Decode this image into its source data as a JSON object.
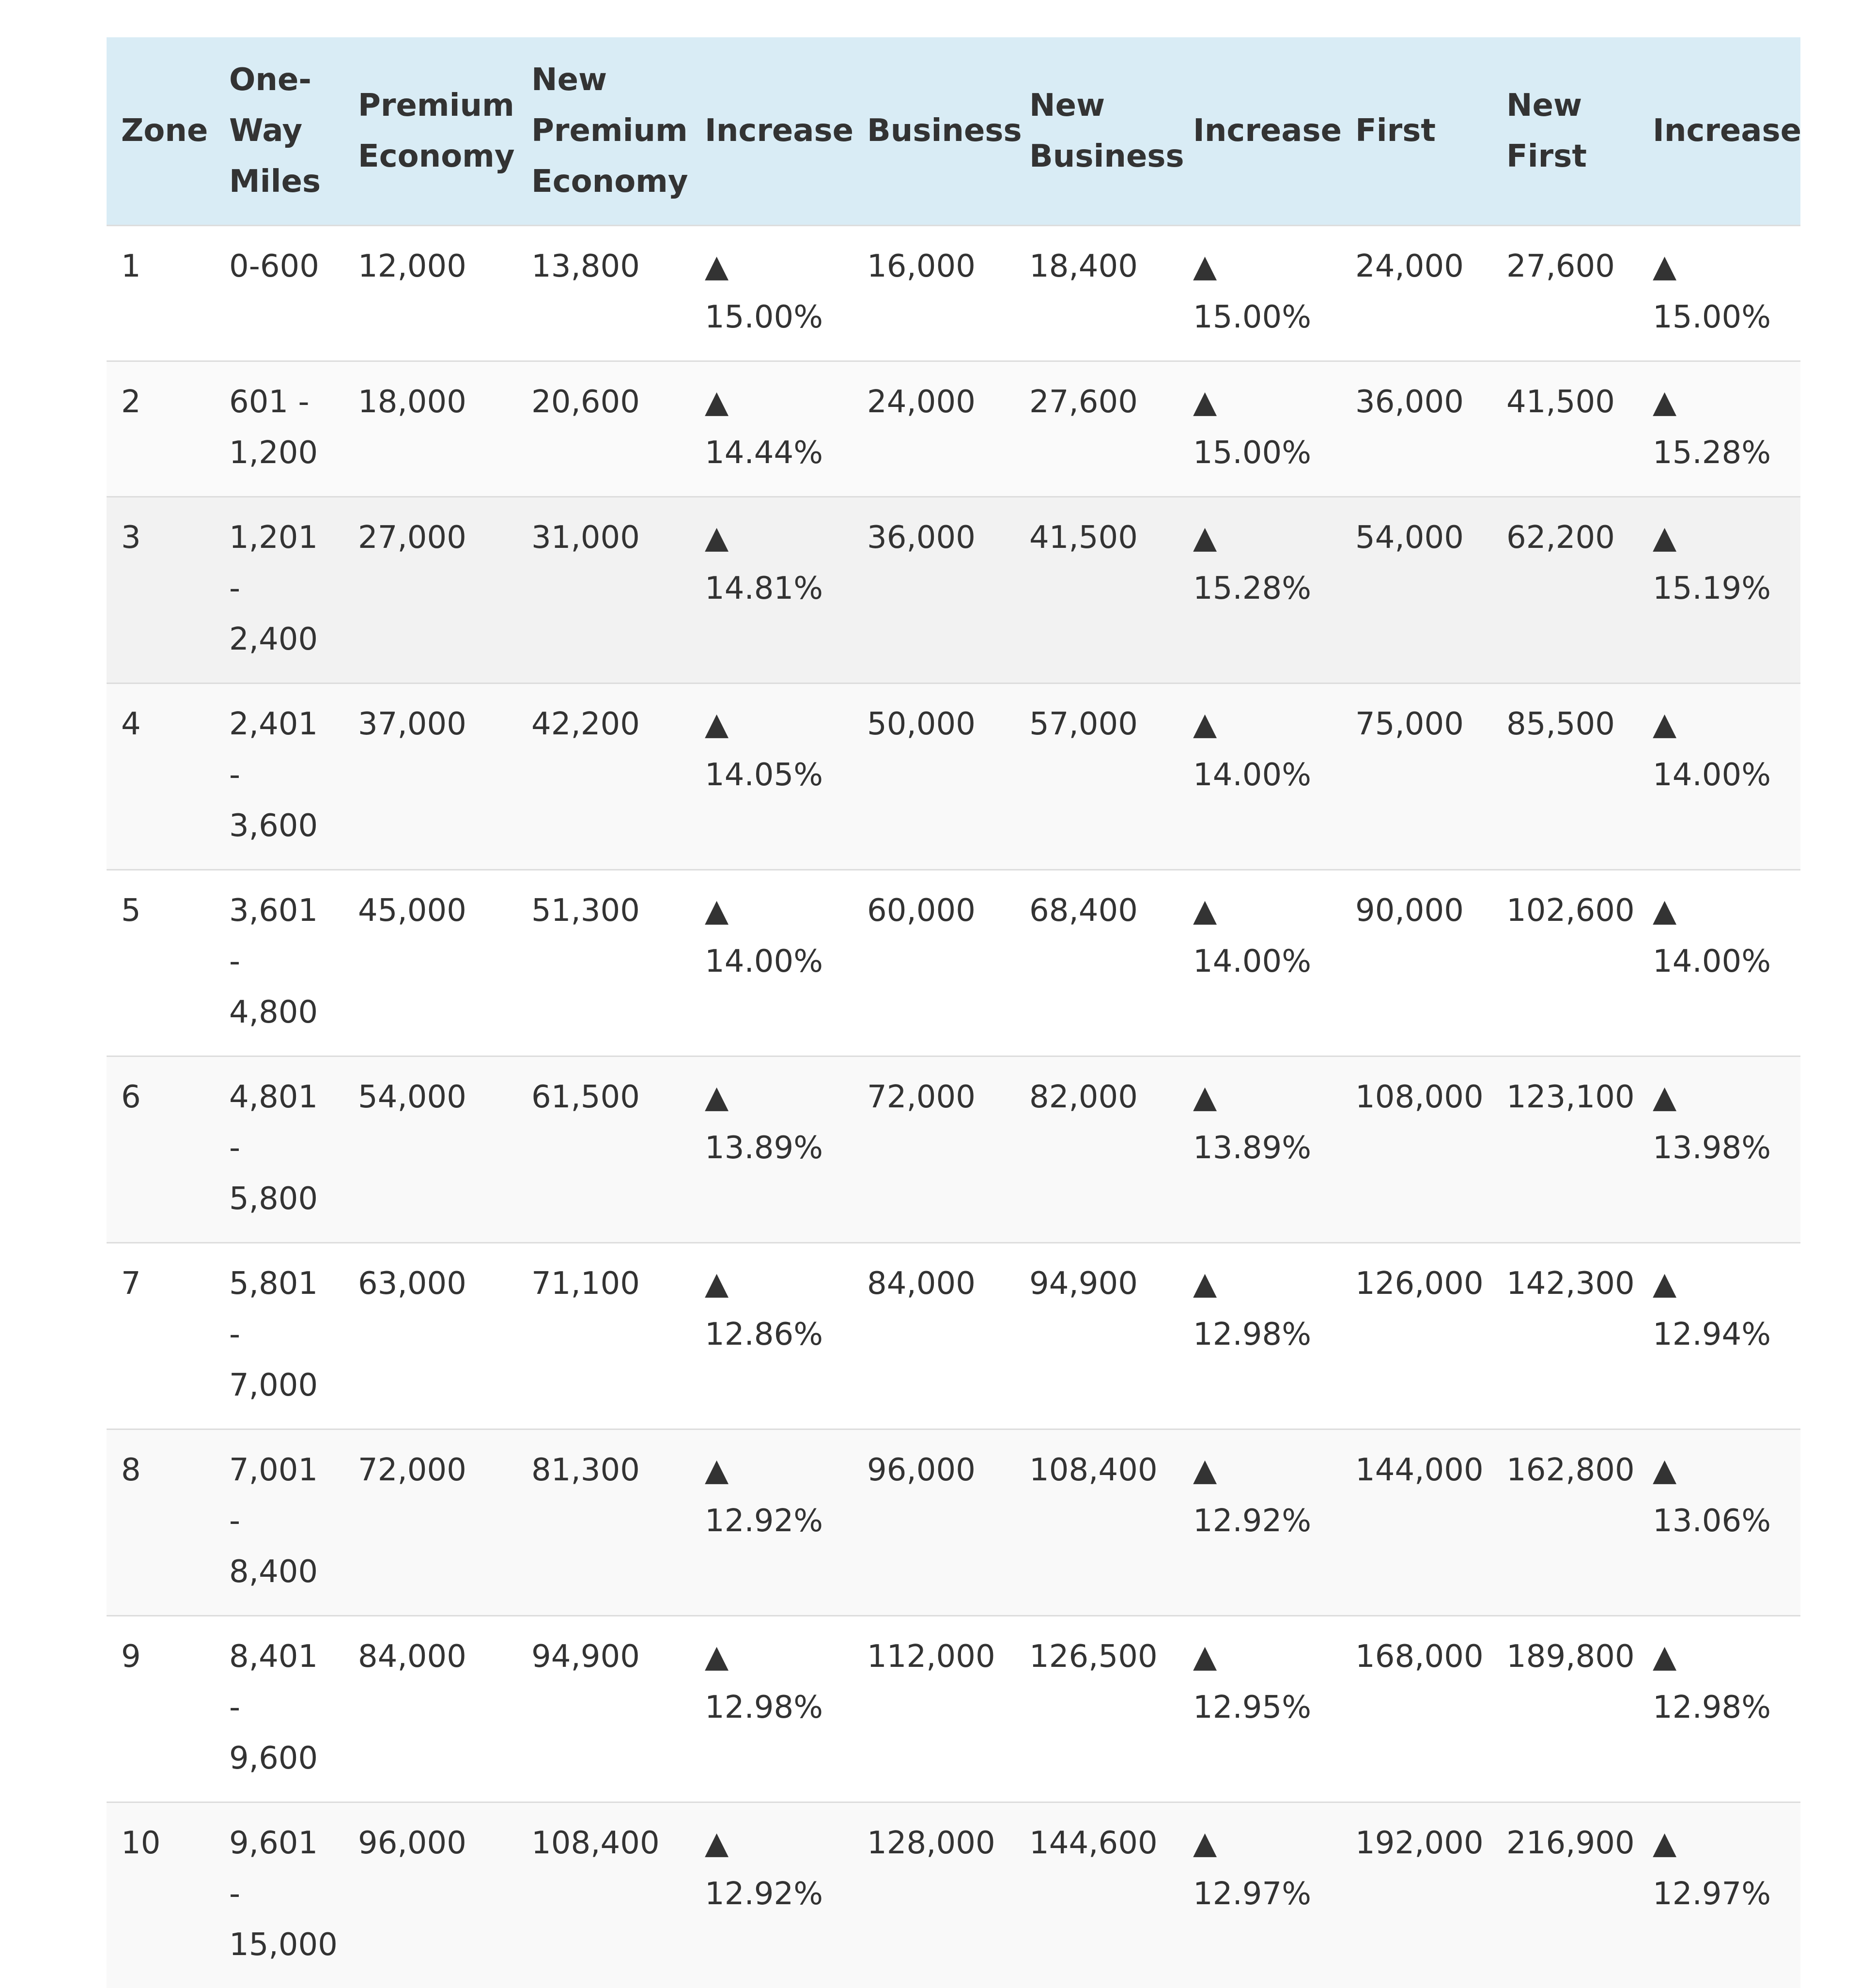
{
  "table": {
    "headers": [
      "Zone",
      "One-Way Miles",
      "Premium Economy",
      "New Premium Economy",
      "Increase",
      "Business",
      "New Business",
      "Increase",
      "First",
      "New First",
      "Increase"
    ],
    "rows": [
      [
        "1",
        "0-600",
        "12,000",
        "13,800",
        "▲ 15.00%",
        "16,000",
        "18,400",
        "▲ 15.00%",
        "24,000",
        "27,600",
        "▲ 15.00%"
      ],
      [
        "2",
        "601 - 1,200",
        "18,000",
        "20,600",
        "▲ 14.44%",
        "24,000",
        "27,600",
        "▲ 15.00%",
        "36,000",
        "41,500",
        "▲ 15.28%"
      ],
      [
        "3",
        "1,201 - 2,400",
        "27,000",
        "31,000",
        "▲ 14.81%",
        "36,000",
        "41,500",
        "▲ 15.28%",
        "54,000",
        "62,200",
        "▲ 15.19%"
      ],
      [
        "4",
        "2,401 - 3,600",
        "37,000",
        "42,200",
        "▲ 14.05%",
        "50,000",
        "57,000",
        "▲ 14.00%",
        "75,000",
        "85,500",
        "▲ 14.00%"
      ],
      [
        "5",
        "3,601 - 4,800",
        "45,000",
        "51,300",
        "▲ 14.00%",
        "60,000",
        "68,400",
        "▲ 14.00%",
        "90,000",
        "102,600",
        "▲ 14.00%"
      ],
      [
        "6",
        "4,801 - 5,800",
        "54,000",
        "61,500",
        "▲ 13.89%",
        "72,000",
        "82,000",
        "▲ 13.89%",
        "108,000",
        "123,100",
        "▲ 13.98%"
      ],
      [
        "7",
        "5,801 - 7,000",
        "63,000",
        "71,100",
        "▲ 12.86%",
        "84,000",
        "94,900",
        "▲ 12.98%",
        "126,000",
        "142,300",
        "▲ 12.94%"
      ],
      [
        "8",
        "7,001 - 8,400",
        "72,000",
        "81,300",
        "▲ 12.92%",
        "96,000",
        "108,400",
        "▲ 12.92%",
        "144,000",
        "162,800",
        "▲ 13.06%"
      ],
      [
        "9",
        "8,401 - 9,600",
        "84,000",
        "94,900",
        "▲ 12.98%",
        "112,000",
        "126,500",
        "▲ 12.95%",
        "168,000",
        "189,800",
        "▲ 12.98%"
      ],
      [
        "10",
        "9,601 - 15,000",
        "96,000",
        "108,400",
        "▲ 12.92%",
        "128,000",
        "144,600",
        "▲ 12.97%",
        "192,000",
        "216,900",
        "▲ 12.97%"
      ]
    ]
  }
}
